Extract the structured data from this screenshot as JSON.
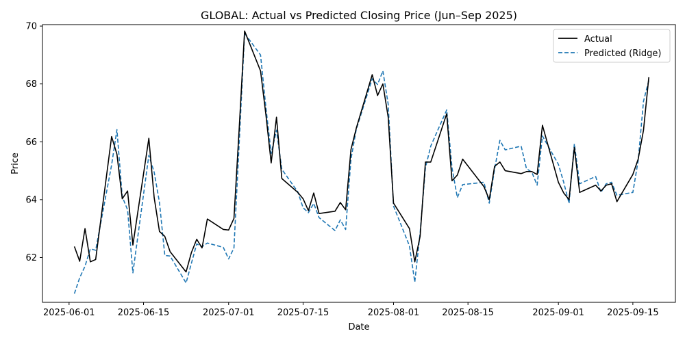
{
  "chart_data": {
    "type": "line",
    "title": "GLOBAL: Actual vs Predicted Closing Price (Jun–Sep 2025)",
    "xlabel": "Date",
    "ylabel": "Price",
    "xlim": [
      "2025-05-27",
      "2025-09-23"
    ],
    "ylim": [
      60.45,
      70.05
    ],
    "x_ticks": [
      {
        "date": "2025-06-01",
        "label": "2025-06-01"
      },
      {
        "date": "2025-06-15",
        "label": "2025-06-15"
      },
      {
        "date": "2025-07-01",
        "label": "2025-07-01"
      },
      {
        "date": "2025-07-15",
        "label": "2025-07-15"
      },
      {
        "date": "2025-08-01",
        "label": "2025-08-01"
      },
      {
        "date": "2025-08-15",
        "label": "2025-08-15"
      },
      {
        "date": "2025-09-01",
        "label": "2025-09-01"
      },
      {
        "date": "2025-09-15",
        "label": "2025-09-15"
      }
    ],
    "y_ticks": [
      62,
      64,
      66,
      68,
      70
    ],
    "grid": false,
    "legend_position": "top-right",
    "series": [
      {
        "name": "Actual",
        "color": "#000000",
        "style": "solid",
        "points": [
          [
            "2025-06-02",
            62.38
          ],
          [
            "2025-06-03",
            61.87
          ],
          [
            "2025-06-04",
            63.0
          ],
          [
            "2025-06-05",
            61.85
          ],
          [
            "2025-06-06",
            61.93
          ],
          [
            "2025-06-09",
            66.18
          ],
          [
            "2025-06-10",
            65.57
          ],
          [
            "2025-06-11",
            64.03
          ],
          [
            "2025-06-12",
            64.3
          ],
          [
            "2025-06-13",
            62.43
          ],
          [
            "2025-06-16",
            66.12
          ],
          [
            "2025-06-17",
            64.07
          ],
          [
            "2025-06-18",
            62.9
          ],
          [
            "2025-06-19",
            62.73
          ],
          [
            "2025-06-20",
            62.2
          ],
          [
            "2025-06-23",
            61.5
          ],
          [
            "2025-06-24",
            62.17
          ],
          [
            "2025-06-25",
            62.63
          ],
          [
            "2025-06-26",
            62.33
          ],
          [
            "2025-06-27",
            63.33
          ],
          [
            "2025-06-30",
            62.97
          ],
          [
            "2025-07-01",
            62.95
          ],
          [
            "2025-07-02",
            63.35
          ],
          [
            "2025-07-03",
            66.5
          ],
          [
            "2025-07-04",
            69.83
          ],
          [
            "2025-07-07",
            68.45
          ],
          [
            "2025-07-08",
            66.95
          ],
          [
            "2025-07-09",
            65.27
          ],
          [
            "2025-07-10",
            66.85
          ],
          [
            "2025-07-11",
            64.73
          ],
          [
            "2025-07-14",
            64.25
          ],
          [
            "2025-07-15",
            64.03
          ],
          [
            "2025-07-16",
            63.62
          ],
          [
            "2025-07-17",
            64.23
          ],
          [
            "2025-07-18",
            63.52
          ],
          [
            "2025-07-21",
            63.6
          ],
          [
            "2025-07-22",
            63.9
          ],
          [
            "2025-07-23",
            63.65
          ],
          [
            "2025-07-24",
            65.73
          ],
          [
            "2025-07-25",
            66.47
          ],
          [
            "2025-07-28",
            68.32
          ],
          [
            "2025-07-29",
            67.6
          ],
          [
            "2025-07-30",
            68.0
          ],
          [
            "2025-07-31",
            66.85
          ],
          [
            "2025-08-01",
            63.88
          ],
          [
            "2025-08-04",
            63.0
          ],
          [
            "2025-08-05",
            61.85
          ],
          [
            "2025-08-06",
            62.73
          ],
          [
            "2025-08-07",
            65.3
          ],
          [
            "2025-08-08",
            65.3
          ],
          [
            "2025-08-11",
            66.97
          ],
          [
            "2025-08-12",
            64.65
          ],
          [
            "2025-08-13",
            64.85
          ],
          [
            "2025-08-14",
            65.4
          ],
          [
            "2025-08-18",
            64.45
          ],
          [
            "2025-08-19",
            64.0
          ],
          [
            "2025-08-20",
            65.15
          ],
          [
            "2025-08-21",
            65.3
          ],
          [
            "2025-08-22",
            65.0
          ],
          [
            "2025-08-25",
            64.9
          ],
          [
            "2025-08-26",
            64.97
          ],
          [
            "2025-08-27",
            64.97
          ],
          [
            "2025-08-28",
            64.87
          ],
          [
            "2025-08-29",
            66.57
          ],
          [
            "2025-09-01",
            64.6
          ],
          [
            "2025-09-02",
            64.23
          ],
          [
            "2025-09-03",
            64.0
          ],
          [
            "2025-09-04",
            65.8
          ],
          [
            "2025-09-05",
            64.25
          ],
          [
            "2025-09-08",
            64.5
          ],
          [
            "2025-09-09",
            64.3
          ],
          [
            "2025-09-10",
            64.5
          ],
          [
            "2025-09-11",
            64.55
          ],
          [
            "2025-09-12",
            63.93
          ],
          [
            "2025-09-15",
            64.87
          ],
          [
            "2025-09-16",
            65.4
          ],
          [
            "2025-09-17",
            66.4
          ],
          [
            "2025-09-18",
            68.23
          ]
        ]
      },
      {
        "name": "Predicted (Ridge)",
        "color": "#1f77b4",
        "style": "dashed",
        "points": [
          [
            "2025-06-02",
            60.75
          ],
          [
            "2025-06-03",
            61.3
          ],
          [
            "2025-06-04",
            61.7
          ],
          [
            "2025-06-05",
            62.3
          ],
          [
            "2025-06-06",
            62.25
          ],
          [
            "2025-06-09",
            65.2
          ],
          [
            "2025-06-10",
            66.42
          ],
          [
            "2025-06-11",
            64.1
          ],
          [
            "2025-06-12",
            63.65
          ],
          [
            "2025-06-13",
            61.47
          ],
          [
            "2025-06-16",
            65.53
          ],
          [
            "2025-06-17",
            64.95
          ],
          [
            "2025-06-18",
            63.9
          ],
          [
            "2025-06-19",
            62.07
          ],
          [
            "2025-06-20",
            62.05
          ],
          [
            "2025-06-23",
            61.12
          ],
          [
            "2025-06-24",
            61.8
          ],
          [
            "2025-06-25",
            62.47
          ],
          [
            "2025-06-26",
            62.37
          ],
          [
            "2025-06-27",
            62.5
          ],
          [
            "2025-06-30",
            62.35
          ],
          [
            "2025-07-01",
            61.95
          ],
          [
            "2025-07-02",
            62.33
          ],
          [
            "2025-07-03",
            66.0
          ],
          [
            "2025-07-04",
            69.75
          ],
          [
            "2025-07-07",
            69.0
          ],
          [
            "2025-07-08",
            67.2
          ],
          [
            "2025-07-09",
            65.6
          ],
          [
            "2025-07-10",
            66.4
          ],
          [
            "2025-07-11",
            65.05
          ],
          [
            "2025-07-14",
            64.27
          ],
          [
            "2025-07-15",
            63.72
          ],
          [
            "2025-07-16",
            63.55
          ],
          [
            "2025-07-17",
            63.87
          ],
          [
            "2025-07-18",
            63.38
          ],
          [
            "2025-07-21",
            62.93
          ],
          [
            "2025-07-22",
            63.3
          ],
          [
            "2025-07-23",
            62.97
          ],
          [
            "2025-07-24",
            65.4
          ],
          [
            "2025-07-25",
            66.43
          ],
          [
            "2025-07-28",
            68.18
          ],
          [
            "2025-07-29",
            67.98
          ],
          [
            "2025-07-30",
            68.45
          ],
          [
            "2025-07-31",
            67.3
          ],
          [
            "2025-08-01",
            63.78
          ],
          [
            "2025-08-04",
            62.4
          ],
          [
            "2025-08-05",
            61.15
          ],
          [
            "2025-08-06",
            62.85
          ],
          [
            "2025-08-07",
            65.1
          ],
          [
            "2025-08-08",
            65.85
          ],
          [
            "2025-08-11",
            67.1
          ],
          [
            "2025-08-12",
            65.1
          ],
          [
            "2025-08-13",
            64.07
          ],
          [
            "2025-08-14",
            64.52
          ],
          [
            "2025-08-18",
            64.6
          ],
          [
            "2025-08-19",
            63.88
          ],
          [
            "2025-08-20",
            65.05
          ],
          [
            "2025-08-21",
            66.05
          ],
          [
            "2025-08-22",
            65.72
          ],
          [
            "2025-08-25",
            65.85
          ],
          [
            "2025-08-26",
            65.07
          ],
          [
            "2025-08-27",
            64.95
          ],
          [
            "2025-08-28",
            64.5
          ],
          [
            "2025-08-29",
            66.2
          ],
          [
            "2025-09-01",
            65.22
          ],
          [
            "2025-09-02",
            64.6
          ],
          [
            "2025-09-03",
            63.87
          ],
          [
            "2025-09-04",
            65.93
          ],
          [
            "2025-09-05",
            64.55
          ],
          [
            "2025-09-08",
            64.8
          ],
          [
            "2025-09-09",
            64.25
          ],
          [
            "2025-09-10",
            64.55
          ],
          [
            "2025-09-11",
            64.6
          ],
          [
            "2025-09-12",
            64.15
          ],
          [
            "2025-09-15",
            64.25
          ],
          [
            "2025-09-16",
            65.35
          ],
          [
            "2025-09-17",
            67.4
          ],
          [
            "2025-09-18",
            68.12
          ]
        ]
      }
    ]
  }
}
